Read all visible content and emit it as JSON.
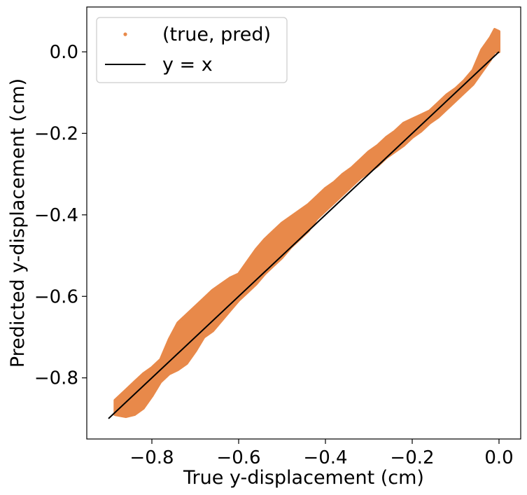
{
  "chart_data": {
    "type": "scatter",
    "title": "",
    "xlabel": "True y-displacement (cm)",
    "ylabel": "Predicted y-displacement (cm)",
    "xlim": [
      -0.95,
      0.05
    ],
    "ylim": [
      -0.95,
      0.11
    ],
    "xticks": [
      -0.8,
      -0.6,
      -0.4,
      -0.2,
      0.0
    ],
    "xtick_labels": [
      "−0.8",
      "−0.6",
      "−0.4",
      "−0.2",
      "0.0"
    ],
    "yticks": [
      -0.8,
      -0.6,
      -0.4,
      -0.2,
      0.0
    ],
    "ytick_labels": [
      "−0.8",
      "−0.6",
      "−0.4",
      "−0.2",
      "0.0"
    ],
    "grid": false,
    "legend_position": "top-left",
    "series": [
      {
        "name": "(true, pred)",
        "kind": "scatter",
        "color": "#e8894a",
        "note_values": "dense point cloud along the diagonal; upper/lower edges sampled at these x values",
        "x": [
          -0.885,
          -0.86,
          -0.84,
          -0.82,
          -0.8,
          -0.78,
          -0.76,
          -0.74,
          -0.72,
          -0.7,
          -0.68,
          -0.66,
          -0.64,
          -0.62,
          -0.6,
          -0.58,
          -0.56,
          -0.54,
          -0.52,
          -0.5,
          -0.48,
          -0.46,
          -0.44,
          -0.42,
          -0.4,
          -0.38,
          -0.36,
          -0.34,
          -0.32,
          -0.3,
          -0.28,
          -0.26,
          -0.24,
          -0.22,
          -0.2,
          -0.18,
          -0.16,
          -0.14,
          -0.12,
          -0.1,
          -0.08,
          -0.06,
          -0.04,
          -0.02,
          -0.01,
          0.0
        ],
        "upper": [
          -0.855,
          -0.83,
          -0.81,
          -0.79,
          -0.775,
          -0.755,
          -0.705,
          -0.665,
          -0.645,
          -0.625,
          -0.605,
          -0.585,
          -0.57,
          -0.555,
          -0.545,
          -0.515,
          -0.485,
          -0.46,
          -0.44,
          -0.42,
          -0.405,
          -0.39,
          -0.375,
          -0.355,
          -0.335,
          -0.32,
          -0.3,
          -0.285,
          -0.265,
          -0.245,
          -0.23,
          -0.21,
          -0.195,
          -0.175,
          -0.165,
          -0.155,
          -0.145,
          -0.125,
          -0.105,
          -0.09,
          -0.07,
          -0.045,
          0.005,
          0.035,
          0.055,
          0.05
        ],
        "lower": [
          -0.89,
          -0.895,
          -0.89,
          -0.875,
          -0.845,
          -0.81,
          -0.79,
          -0.78,
          -0.765,
          -0.735,
          -0.7,
          -0.685,
          -0.66,
          -0.635,
          -0.61,
          -0.59,
          -0.57,
          -0.545,
          -0.525,
          -0.505,
          -0.48,
          -0.46,
          -0.44,
          -0.41,
          -0.39,
          -0.37,
          -0.35,
          -0.33,
          -0.31,
          -0.295,
          -0.28,
          -0.26,
          -0.245,
          -0.23,
          -0.21,
          -0.195,
          -0.175,
          -0.16,
          -0.14,
          -0.12,
          -0.1,
          -0.08,
          -0.05,
          -0.02,
          0.0,
          0.0
        ]
      },
      {
        "name": "y = x",
        "kind": "line",
        "color": "#000000",
        "x": [
          -0.9,
          0.0
        ],
        "y": [
          -0.9,
          0.0
        ]
      }
    ]
  }
}
